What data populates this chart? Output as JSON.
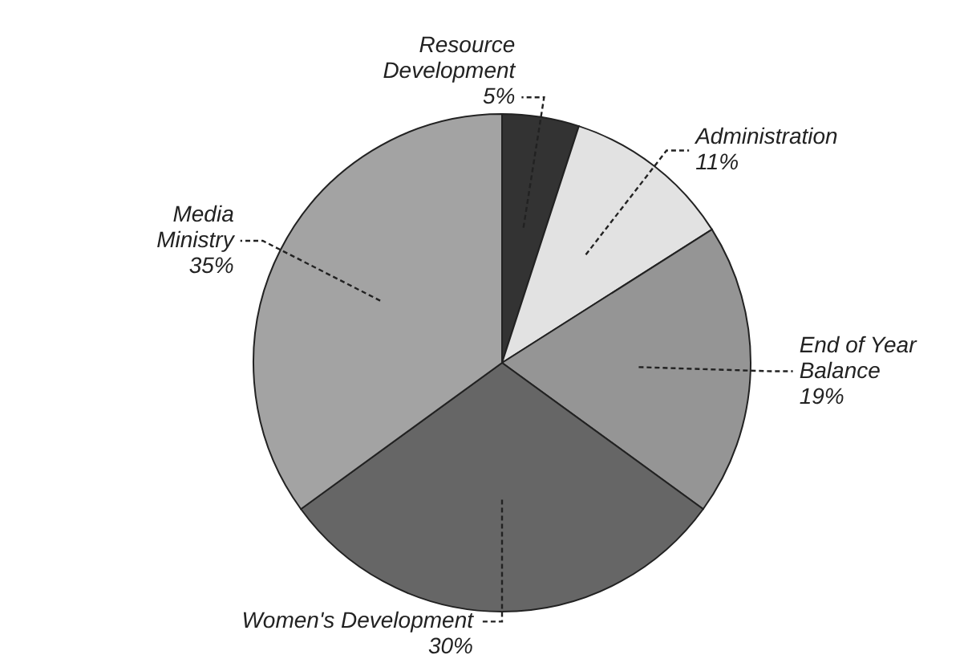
{
  "chart_data": {
    "type": "pie",
    "categories": [
      "Resource Development",
      "Administration",
      "End of Year Balance",
      "Women's Development",
      "Media Ministry"
    ],
    "values": [
      5,
      11,
      19,
      30,
      35
    ],
    "value_labels": [
      "5%",
      "11%",
      "19%",
      "30%",
      "35%"
    ],
    "colors": [
      "#333333",
      "#e2e2e2",
      "#959595",
      "#666666",
      "#a3a3a3"
    ]
  }
}
